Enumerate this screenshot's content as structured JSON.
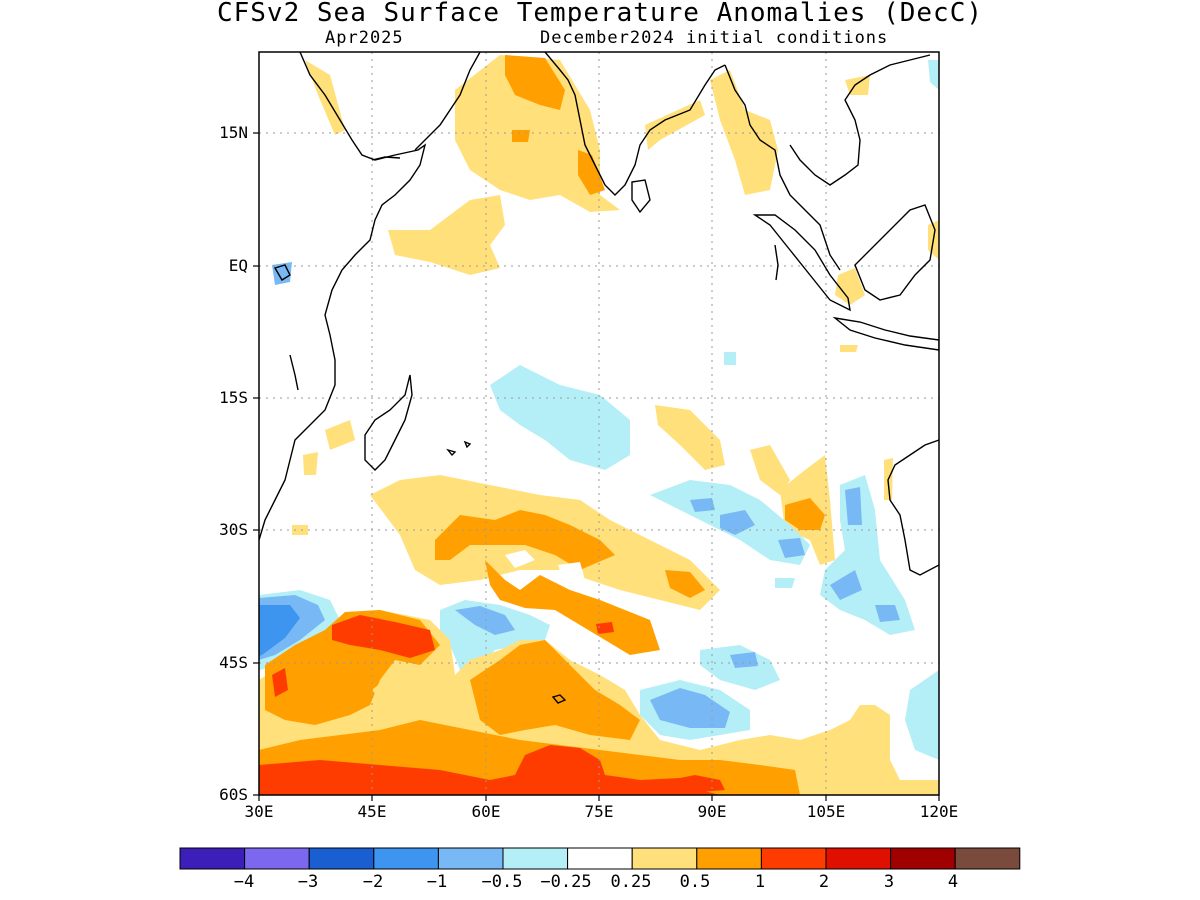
{
  "title": "CFSv2 Sea Surface Temperature Anomalies (DecC)",
  "subtitle_left": "Apr2025",
  "subtitle_right": "December2024 initial conditions",
  "axes": {
    "lat_labels": [
      "15N",
      "EQ",
      "15S",
      "30S",
      "45S",
      "60S"
    ],
    "lon_labels": [
      "30E",
      "45E",
      "60E",
      "75E",
      "90E",
      "105E",
      "120E"
    ]
  },
  "colorbar": {
    "colors": [
      "#3b1fb8",
      "#7b68ee",
      "#1a5fd1",
      "#3d95f0",
      "#78b8f5",
      "#b4eef7",
      "#ffffff",
      "#ffe07a",
      "#ffa000",
      "#ff3c00",
      "#e01000",
      "#a00000",
      "#7a4a3c"
    ],
    "labels": [
      "−4",
      "−3",
      "−2",
      "−1",
      "−0.5",
      "−0.25",
      "0.25",
      "0.5",
      "1",
      "2",
      "3",
      "4"
    ]
  },
  "palette": {
    "light_blue": "#b4eef7",
    "mid_blue": "#78b8f5",
    "blue": "#3d95f0",
    "yellow": "#ffe07a",
    "orange": "#ffa000",
    "red_orange": "#ff3c00",
    "coast": "#000000",
    "grid": "#9a9a9a"
  }
}
